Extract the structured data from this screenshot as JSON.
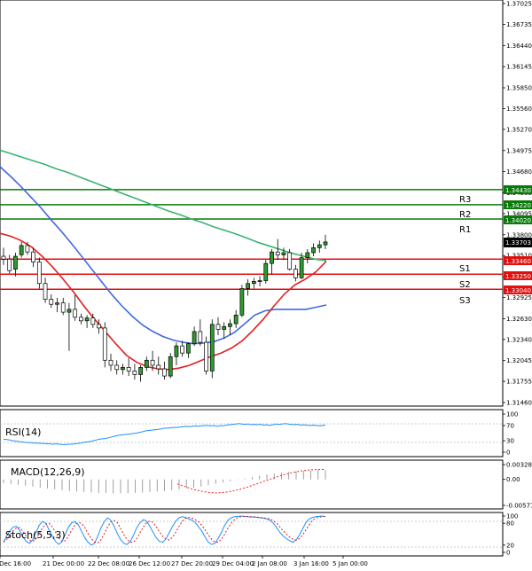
{
  "chart_data": [
    {
      "type": "candlestick",
      "price_axis_ticks": [
        "1.37025",
        "1.36735",
        "1.36440",
        "1.36145",
        "1.35850",
        "1.35560",
        "1.35270",
        "1.34975",
        "1.34680",
        "1.34385",
        "1.34095",
        "1.33800",
        "1.33510",
        "1.33215",
        "1.32925",
        "1.32630",
        "1.32340",
        "1.32045",
        "1.31755",
        "1.31460"
      ],
      "ylim": [
        1.3146,
        1.37025
      ],
      "time_axis_ticks": [
        "20 Dec 16:00",
        "21 Dec 00:00",
        "22 Dec 08:00",
        "26 Dec 12:00",
        "27 Dec 20:00",
        "29 Dec 04:00",
        "2 Jan 08:00",
        "3 Jan 16:00",
        "5 Jan 00:00"
      ],
      "current_price": "1.33703",
      "candles": [
        [
          1.335,
          1.3362,
          1.3338,
          1.3346
        ],
        [
          1.3346,
          1.3352,
          1.3326,
          1.333
        ],
        [
          1.3332,
          1.3355,
          1.3322,
          1.335
        ],
        [
          1.3352,
          1.337,
          1.3348,
          1.3365
        ],
        [
          1.3365,
          1.337,
          1.3352,
          1.3356
        ],
        [
          1.3356,
          1.3362,
          1.3335,
          1.3342
        ],
        [
          1.3342,
          1.3348,
          1.3305,
          1.3312
        ],
        [
          1.3312,
          1.332,
          1.3285,
          1.329
        ],
        [
          1.329,
          1.3297,
          1.3278,
          1.3283
        ],
        [
          1.3283,
          1.3292,
          1.3272,
          1.3285
        ],
        [
          1.3285,
          1.3292,
          1.3268,
          1.3272
        ],
        [
          1.3272,
          1.3285,
          1.3218,
          1.3276
        ],
        [
          1.3276,
          1.3296,
          1.326,
          1.3265
        ],
        [
          1.3265,
          1.327,
          1.3255,
          1.326
        ],
        [
          1.326,
          1.3268,
          1.325,
          1.3264
        ],
        [
          1.3264,
          1.327,
          1.325,
          1.3255
        ],
        [
          1.3255,
          1.3262,
          1.3242,
          1.325
        ],
        [
          1.325,
          1.3258,
          1.3195,
          1.3205
        ],
        [
          1.3205,
          1.3214,
          1.319,
          1.3198
        ],
        [
          1.3198,
          1.3205,
          1.3185,
          1.3192
        ],
        [
          1.3192,
          1.32,
          1.3185,
          1.3195
        ],
        [
          1.3195,
          1.3208,
          1.3183,
          1.319
        ],
        [
          1.319,
          1.32,
          1.3178,
          1.3185
        ],
        [
          1.3185,
          1.3198,
          1.3175,
          1.3195
        ],
        [
          1.3195,
          1.321,
          1.319,
          1.3205
        ],
        [
          1.3205,
          1.3218,
          1.319,
          1.3198
        ],
        [
          1.3198,
          1.321,
          1.3185,
          1.3193
        ],
        [
          1.3193,
          1.3203,
          1.3178,
          1.3183
        ],
        [
          1.3183,
          1.3215,
          1.318,
          1.321
        ],
        [
          1.321,
          1.323,
          1.3198,
          1.3225
        ],
        [
          1.3225,
          1.3232,
          1.321,
          1.3215
        ],
        [
          1.3215,
          1.323,
          1.3208,
          1.3228
        ],
        [
          1.3228,
          1.3252,
          1.3225,
          1.3245
        ],
        [
          1.3245,
          1.3262,
          1.3225,
          1.323
        ],
        [
          1.323,
          1.3238,
          1.3185,
          1.319
        ],
        [
          1.319,
          1.3262,
          1.318,
          1.3255
        ],
        [
          1.3255,
          1.3265,
          1.324,
          1.3248
        ],
        [
          1.3248,
          1.3258,
          1.3235,
          1.3252
        ],
        [
          1.3252,
          1.3262,
          1.324,
          1.3256
        ],
        [
          1.3256,
          1.3275,
          1.325,
          1.3268
        ],
        [
          1.3268,
          1.331,
          1.3265,
          1.3305
        ],
        [
          1.3305,
          1.3318,
          1.3295,
          1.3312
        ],
        [
          1.3312,
          1.332,
          1.3305,
          1.3315
        ],
        [
          1.3315,
          1.3322,
          1.3308,
          1.3316
        ],
        [
          1.3316,
          1.3345,
          1.3312,
          1.334
        ],
        [
          1.334,
          1.336,
          1.3325,
          1.3356
        ],
        [
          1.3356,
          1.3374,
          1.3345,
          1.3352
        ],
        [
          1.3352,
          1.3362,
          1.3345,
          1.3355
        ],
        [
          1.3355,
          1.336,
          1.333,
          1.3332
        ],
        [
          1.3332,
          1.3338,
          1.3315,
          1.332
        ],
        [
          1.332,
          1.3355,
          1.3318,
          1.3348
        ],
        [
          1.3348,
          1.336,
          1.334,
          1.3355
        ],
        [
          1.3355,
          1.3368,
          1.335,
          1.3362
        ],
        [
          1.3362,
          1.3372,
          1.3355,
          1.3366
        ],
        [
          1.3366,
          1.338,
          1.336,
          1.337
        ]
      ],
      "moving_averages": [
        {
          "color": "#3cb371",
          "values": [
            1.3498,
            1.3493,
            1.3488,
            1.3483,
            1.3478,
            1.3472,
            1.3467,
            1.3461,
            1.3455,
            1.3449,
            1.3443,
            1.3437,
            1.3431,
            1.3425,
            1.3419,
            1.3413,
            1.3408,
            1.3402,
            1.3397,
            1.3391,
            1.3386,
            1.3381,
            1.3375,
            1.3369,
            1.3364,
            1.3359,
            1.3354,
            1.335,
            1.3346,
            1.3344
          ]
        },
        {
          "color": "#4169e1",
          "values": [
            1.3475,
            1.3462,
            1.3448,
            1.3433,
            1.3418,
            1.3401,
            1.3385,
            1.3368,
            1.335,
            1.3332,
            1.3314,
            1.3296,
            1.328,
            1.3266,
            1.3254,
            1.3245,
            1.3238,
            1.3233,
            1.323,
            1.3228,
            1.3229,
            1.3231,
            1.3236,
            1.3244,
            1.3256,
            1.3268,
            1.3274,
            1.3276,
            1.3276,
            1.3276,
            1.3276,
            1.3279,
            1.3282
          ]
        },
        {
          "color": "#e02020",
          "values": [
            1.3382,
            1.3378,
            1.3372,
            1.3363,
            1.335,
            1.3335,
            1.3318,
            1.33,
            1.328,
            1.3262,
            1.3245,
            1.3228,
            1.3212,
            1.3202,
            1.3196,
            1.3193,
            1.3192,
            1.3194,
            1.3198,
            1.3204,
            1.321,
            1.3215,
            1.3222,
            1.3232,
            1.3246,
            1.3262,
            1.328,
            1.3297,
            1.331,
            1.3318,
            1.3328,
            1.3343
          ]
        }
      ],
      "levels": [
        {
          "name": "R3",
          "value": "1.34430",
          "color": "#0a7a0a"
        },
        {
          "name": "R2",
          "value": "1.34220",
          "color": "#0a7a0a"
        },
        {
          "name": "R1",
          "value": "1.34020",
          "color": "#0a7a0a"
        },
        {
          "name": "S1",
          "value": "1.33460",
          "color": "#e01010"
        },
        {
          "name": "S2",
          "value": "1.33250",
          "color": "#e01010"
        },
        {
          "name": "S3",
          "value": "1.33040",
          "color": "#e01010"
        }
      ]
    },
    {
      "type": "line",
      "title": "RSI(14)",
      "ticks": [
        "100",
        "70",
        "30",
        "0"
      ],
      "ylim": [
        0,
        100
      ],
      "color": "#1e90ff",
      "values": [
        34,
        33,
        32,
        30,
        29,
        28,
        27,
        26,
        25,
        25,
        24,
        24,
        23,
        23,
        22,
        22,
        21,
        22,
        21,
        20,
        20,
        21,
        21,
        22,
        23,
        24,
        26,
        27,
        28,
        30,
        32,
        34,
        35,
        36,
        38,
        40,
        42,
        44,
        45,
        46,
        47,
        48,
        49,
        50,
        52,
        54,
        56,
        57,
        58,
        59,
        60,
        61,
        63,
        63,
        64,
        65,
        65,
        66,
        67,
        68,
        67,
        68,
        69,
        68,
        69,
        70,
        70,
        69,
        70,
        68,
        70,
        69,
        71,
        72,
        73,
        74,
        75,
        74,
        73,
        74,
        72,
        73,
        72,
        73,
        71,
        72,
        70,
        72,
        74,
        73,
        74,
        75,
        74,
        73,
        72,
        73,
        71,
        72,
        71,
        70,
        71,
        70,
        69,
        70,
        71
      ]
    },
    {
      "type": "bar",
      "title": "MACD(12,26,9)",
      "ticks": [
        "0.003287",
        "0.00",
        "-0.005772"
      ],
      "ylim": [
        -0.005772,
        0.003287
      ],
      "histogram_values": [
        -0.0008,
        -0.001,
        -0.0012,
        -0.0014,
        -0.0016,
        -0.0018,
        -0.002,
        -0.0022,
        -0.0024,
        -0.0026,
        -0.0027,
        -0.0028,
        -0.0029,
        -0.003,
        -0.003,
        -0.0031,
        -0.0031,
        -0.0031,
        -0.003,
        -0.0029,
        -0.0028,
        -0.0027,
        -0.0026,
        -0.0024,
        -0.0022,
        -0.002,
        -0.0018,
        -0.0016,
        -0.0013,
        -0.001,
        -0.0007,
        -0.0004,
        -0.0001,
        0.0002,
        0.0005,
        0.0008,
        0.0011,
        0.0013,
        0.0015,
        0.0017,
        0.0018,
        0.0019,
        0.002,
        0.0021,
        0.0021
      ],
      "signal": {
        "color": "#ff2020",
        "values": [
          -0.001,
          -0.0016,
          -0.0022,
          -0.0026,
          -0.0029,
          -0.003,
          -0.0029,
          -0.0026,
          -0.0022,
          -0.0017,
          -0.0011,
          -0.0005,
          0.0001,
          0.0007,
          0.0012,
          0.0016,
          0.0019,
          0.0021,
          0.0022,
          0.0022
        ]
      }
    },
    {
      "type": "line",
      "title": "Stoch(5,5,3)",
      "ticks": [
        "100",
        "80",
        "20",
        "0"
      ],
      "ylim": [
        0,
        100
      ],
      "series": [
        {
          "color": "#1e90ff",
          "values": [
            30,
            45,
            60,
            70,
            72,
            60,
            42,
            30,
            25,
            35,
            55,
            75,
            85,
            80,
            62,
            45,
            30,
            22,
            30,
            50,
            70,
            82,
            84,
            76,
            58,
            40,
            28,
            20,
            25,
            45,
            68,
            85,
            95,
            88,
            72,
            52,
            35,
            25,
            22,
            30,
            48,
            68,
            82,
            90,
            86,
            72,
            55,
            40,
            30,
            28,
            38,
            55,
            72,
            86,
            95,
            98,
            96,
            92,
            88,
            82,
            70,
            58,
            42,
            28,
            22,
            25,
            38,
            55,
            74,
            88,
            95,
            98,
            99,
            100,
            99,
            98,
            97,
            98,
            96,
            95,
            94,
            92,
            88,
            80,
            68,
            55,
            45,
            38,
            32,
            28,
            34,
            48,
            65,
            82,
            92,
            96,
            98,
            99,
            100,
            98
          ]
        },
        {
          "color": "#e02020",
          "values": [
            28,
            36,
            48,
            60,
            68,
            68,
            58,
            44,
            33,
            30,
            38,
            52,
            68,
            78,
            80,
            70,
            55,
            40,
            30,
            32,
            45,
            62,
            76,
            82,
            80,
            68,
            52,
            38,
            28,
            26,
            35,
            52,
            70,
            84,
            88,
            82,
            66,
            48,
            35,
            28,
            28,
            38,
            55,
            70,
            82,
            86,
            82,
            70,
            56,
            44,
            36,
            34,
            42,
            56,
            72,
            86,
            94,
            96,
            94,
            90,
            84,
            74,
            62,
            48,
            36,
            28,
            28,
            36,
            50,
            66,
            80,
            90,
            96,
            98,
            99,
            99,
            98,
            97,
            97,
            96,
            95,
            94,
            92,
            87,
            80,
            70,
            60,
            50,
            42,
            36,
            34,
            38,
            48,
            62,
            76,
            88,
            94,
            97,
            98,
            99
          ]
        }
      ]
    }
  ]
}
